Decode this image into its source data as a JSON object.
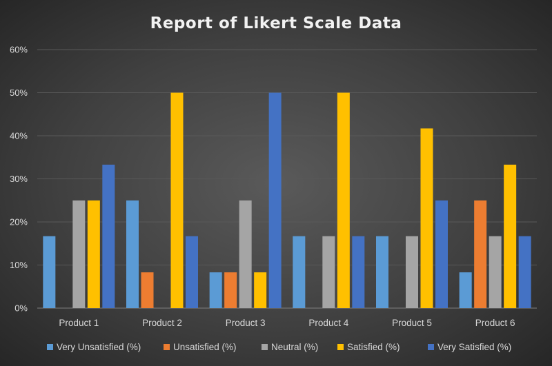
{
  "chart_data": {
    "type": "bar",
    "title": "Report of Likert Scale Data",
    "xlabel": "",
    "ylabel": "",
    "ylim": [
      0,
      60
    ],
    "yticks": [
      "0%",
      "10%",
      "20%",
      "30%",
      "40%",
      "50%",
      "60%"
    ],
    "grid": true,
    "legend_position": "bottom",
    "categories": [
      "Product 1",
      "Product 2",
      "Product 3",
      "Product 4",
      "Product 5",
      "Product 6"
    ],
    "series": [
      {
        "name": "Very Unsatisfied (%)",
        "color": "#5b9bd5",
        "values": [
          16.7,
          25,
          8.3,
          16.7,
          16.7,
          8.3
        ]
      },
      {
        "name": "Unsatisfied (%)",
        "color": "#ed7d31",
        "values": [
          0,
          8.3,
          8.3,
          0,
          0,
          25
        ]
      },
      {
        "name": "Neutral (%)",
        "color": "#a5a5a5",
        "values": [
          25,
          0,
          25,
          16.7,
          16.7,
          16.7
        ]
      },
      {
        "name": "Satisfied (%)",
        "color": "#ffc000",
        "values": [
          25,
          50,
          8.3,
          50,
          41.7,
          33.3
        ]
      },
      {
        "name": "Very Satisfied (%)",
        "color": "#4472c4",
        "values": [
          33.3,
          16.7,
          50,
          16.7,
          25,
          16.7
        ]
      }
    ]
  }
}
